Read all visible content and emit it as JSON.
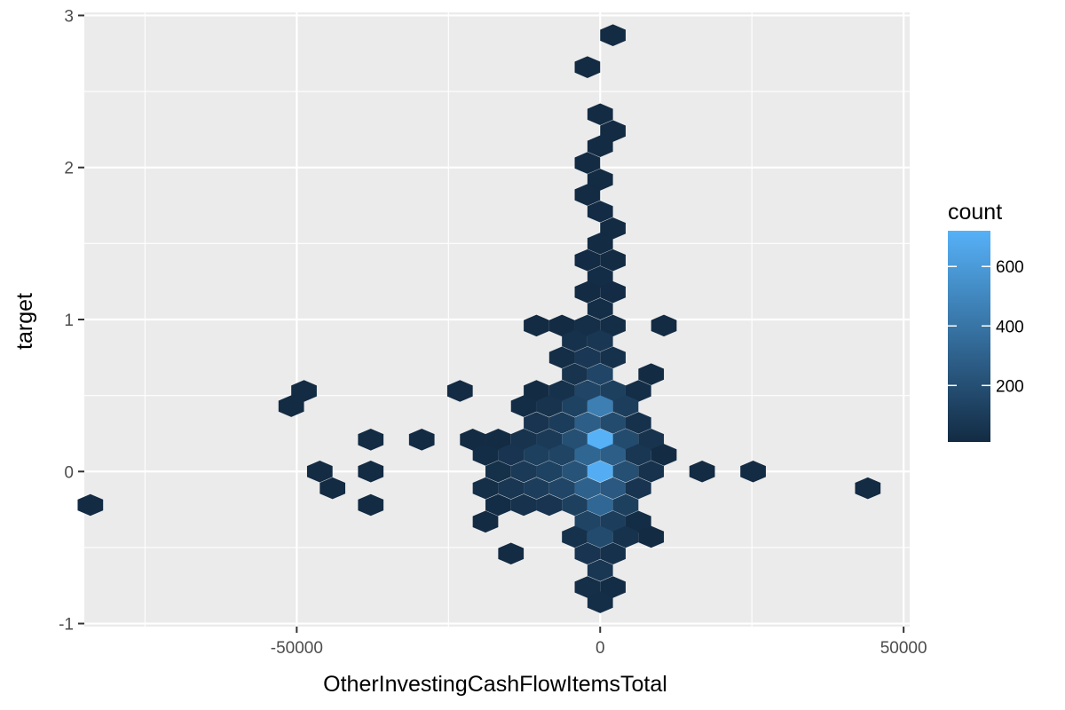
{
  "chart_data": {
    "type": "heatmap",
    "subtype": "hexbin",
    "title": "",
    "xlabel": "OtherInvestingCashFlowItemsTotal",
    "ylabel": "target",
    "xlim": [
      -85000,
      51000
    ],
    "ylim": [
      -1.02,
      3.02
    ],
    "x_ticks": [
      -50000,
      0,
      50000
    ],
    "x_tick_labels": [
      "-50000",
      "0",
      "50000"
    ],
    "y_ticks": [
      -1,
      0,
      1,
      2,
      3
    ],
    "y_tick_labels": [
      "-1",
      "0",
      "1",
      "2",
      "3"
    ],
    "grid": true,
    "legend": {
      "title": "count",
      "position": "right",
      "ticks": [
        200,
        400,
        600
      ],
      "tick_labels": [
        "200",
        "400",
        "600"
      ],
      "range": [
        10,
        720
      ],
      "color_low": "#132B43",
      "color_high": "#56B1F7"
    },
    "bins": [
      {
        "x": 2100,
        "y": 2.87,
        "count": 5
      },
      {
        "x": -2100,
        "y": 2.66,
        "count": 5
      },
      {
        "x": 0,
        "y": 2.35,
        "count": 8
      },
      {
        "x": 2100,
        "y": 2.24,
        "count": 6
      },
      {
        "x": 0,
        "y": 2.14,
        "count": 8
      },
      {
        "x": -2100,
        "y": 2.03,
        "count": 10
      },
      {
        "x": 0,
        "y": 1.92,
        "count": 10
      },
      {
        "x": -2100,
        "y": 1.82,
        "count": 10
      },
      {
        "x": 0,
        "y": 1.71,
        "count": 12
      },
      {
        "x": 2100,
        "y": 1.6,
        "count": 10
      },
      {
        "x": 0,
        "y": 1.5,
        "count": 15
      },
      {
        "x": -2100,
        "y": 1.39,
        "count": 12
      },
      {
        "x": 2100,
        "y": 1.39,
        "count": 10
      },
      {
        "x": 0,
        "y": 1.28,
        "count": 20
      },
      {
        "x": -2100,
        "y": 1.18,
        "count": 15
      },
      {
        "x": 2100,
        "y": 1.18,
        "count": 12
      },
      {
        "x": 0,
        "y": 1.07,
        "count": 25
      },
      {
        "x": -10500,
        "y": 0.96,
        "count": 5
      },
      {
        "x": -6300,
        "y": 0.96,
        "count": 8
      },
      {
        "x": -2100,
        "y": 0.96,
        "count": 30
      },
      {
        "x": 2100,
        "y": 0.96,
        "count": 25
      },
      {
        "x": 10500,
        "y": 0.96,
        "count": 5
      },
      {
        "x": -4200,
        "y": 0.86,
        "count": 40
      },
      {
        "x": 0,
        "y": 0.86,
        "count": 70
      },
      {
        "x": -6300,
        "y": 0.75,
        "count": 25
      },
      {
        "x": -2100,
        "y": 0.75,
        "count": 80
      },
      {
        "x": 2100,
        "y": 0.75,
        "count": 40
      },
      {
        "x": -4200,
        "y": 0.64,
        "count": 50
      },
      {
        "x": 0,
        "y": 0.64,
        "count": 150
      },
      {
        "x": 8400,
        "y": 0.64,
        "count": 8
      },
      {
        "x": -48800,
        "y": 0.53,
        "count": 5
      },
      {
        "x": -23100,
        "y": 0.53,
        "count": 5
      },
      {
        "x": -10500,
        "y": 0.53,
        "count": 15
      },
      {
        "x": -6300,
        "y": 0.53,
        "count": 40
      },
      {
        "x": -2100,
        "y": 0.53,
        "count": 150
      },
      {
        "x": 2100,
        "y": 0.53,
        "count": 120
      },
      {
        "x": 6300,
        "y": 0.53,
        "count": 25
      },
      {
        "x": -50900,
        "y": 0.43,
        "count": 5
      },
      {
        "x": -12600,
        "y": 0.43,
        "count": 20
      },
      {
        "x": -8400,
        "y": 0.43,
        "count": 50
      },
      {
        "x": -4200,
        "y": 0.43,
        "count": 130
      },
      {
        "x": 0,
        "y": 0.43,
        "count": 450
      },
      {
        "x": 4200,
        "y": 0.43,
        "count": 110
      },
      {
        "x": -10500,
        "y": 0.32,
        "count": 60
      },
      {
        "x": -6300,
        "y": 0.32,
        "count": 100
      },
      {
        "x": -2100,
        "y": 0.32,
        "count": 280
      },
      {
        "x": 2100,
        "y": 0.32,
        "count": 180
      },
      {
        "x": 6300,
        "y": 0.32,
        "count": 40
      },
      {
        "x": -37800,
        "y": 0.21,
        "count": 5
      },
      {
        "x": -29400,
        "y": 0.21,
        "count": 5
      },
      {
        "x": -21000,
        "y": 0.21,
        "count": 8
      },
      {
        "x": -16800,
        "y": 0.21,
        "count": 15
      },
      {
        "x": -12600,
        "y": 0.21,
        "count": 50
      },
      {
        "x": -8400,
        "y": 0.21,
        "count": 90
      },
      {
        "x": -4200,
        "y": 0.21,
        "count": 200
      },
      {
        "x": 0,
        "y": 0.21,
        "count": 720
      },
      {
        "x": 4200,
        "y": 0.21,
        "count": 180
      },
      {
        "x": 8400,
        "y": 0.21,
        "count": 50
      },
      {
        "x": -18900,
        "y": 0.11,
        "count": 20
      },
      {
        "x": -14700,
        "y": 0.11,
        "count": 60
      },
      {
        "x": -10500,
        "y": 0.11,
        "count": 120
      },
      {
        "x": -6300,
        "y": 0.11,
        "count": 140
      },
      {
        "x": -2100,
        "y": 0.11,
        "count": 320
      },
      {
        "x": 2100,
        "y": 0.11,
        "count": 280
      },
      {
        "x": 6300,
        "y": 0.11,
        "count": 70
      },
      {
        "x": 10500,
        "y": 0.11,
        "count": 15
      },
      {
        "x": -46200,
        "y": 0.0,
        "count": 5
      },
      {
        "x": -37800,
        "y": 0.0,
        "count": 5
      },
      {
        "x": -16800,
        "y": 0.0,
        "count": 35
      },
      {
        "x": -12600,
        "y": 0.0,
        "count": 90
      },
      {
        "x": -8400,
        "y": 0.0,
        "count": 130
      },
      {
        "x": -4200,
        "y": 0.0,
        "count": 220
      },
      {
        "x": 0,
        "y": 0.0,
        "count": 700
      },
      {
        "x": 4200,
        "y": 0.0,
        "count": 200
      },
      {
        "x": 8400,
        "y": 0.0,
        "count": 45
      },
      {
        "x": 16800,
        "y": 0.0,
        "count": 5
      },
      {
        "x": 25200,
        "y": 0.0,
        "count": 5
      },
      {
        "x": -44100,
        "y": -0.11,
        "count": 5
      },
      {
        "x": -18900,
        "y": -0.11,
        "count": 30
      },
      {
        "x": -14700,
        "y": -0.11,
        "count": 70
      },
      {
        "x": -10500,
        "y": -0.11,
        "count": 110
      },
      {
        "x": -6300,
        "y": -0.11,
        "count": 150
      },
      {
        "x": -2100,
        "y": -0.11,
        "count": 300
      },
      {
        "x": 2100,
        "y": -0.11,
        "count": 250
      },
      {
        "x": 6300,
        "y": -0.11,
        "count": 60
      },
      {
        "x": 44100,
        "y": -0.11,
        "count": 5
      },
      {
        "x": -84000,
        "y": -0.22,
        "count": 5
      },
      {
        "x": -37800,
        "y": -0.22,
        "count": 5
      },
      {
        "x": -16800,
        "y": -0.22,
        "count": 20
      },
      {
        "x": -12600,
        "y": -0.22,
        "count": 45
      },
      {
        "x": -8400,
        "y": -0.22,
        "count": 60
      },
      {
        "x": -4200,
        "y": -0.22,
        "count": 120
      },
      {
        "x": 0,
        "y": -0.22,
        "count": 330
      },
      {
        "x": 4200,
        "y": -0.22,
        "count": 120
      },
      {
        "x": -18900,
        "y": -0.33,
        "count": 8
      },
      {
        "x": -2100,
        "y": -0.33,
        "count": 140
      },
      {
        "x": 2100,
        "y": -0.33,
        "count": 110
      },
      {
        "x": 6300,
        "y": -0.33,
        "count": 20
      },
      {
        "x": -4200,
        "y": -0.43,
        "count": 40
      },
      {
        "x": 0,
        "y": -0.43,
        "count": 180
      },
      {
        "x": 4200,
        "y": -0.43,
        "count": 45
      },
      {
        "x": 8400,
        "y": -0.43,
        "count": 8
      },
      {
        "x": -14700,
        "y": -0.54,
        "count": 5
      },
      {
        "x": -2100,
        "y": -0.54,
        "count": 60
      },
      {
        "x": 2100,
        "y": -0.54,
        "count": 40
      },
      {
        "x": 0,
        "y": -0.65,
        "count": 70
      },
      {
        "x": -2100,
        "y": -0.76,
        "count": 30
      },
      {
        "x": 2100,
        "y": -0.76,
        "count": 20
      },
      {
        "x": 0,
        "y": -0.86,
        "count": 25
      }
    ]
  }
}
